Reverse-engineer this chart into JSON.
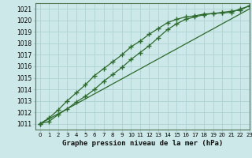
{
  "title": "Graphe pression niveau de la mer (hPa)",
  "bg_color": "#cce8e8",
  "grid_color": "#aacece",
  "line_color": "#2d6a2d",
  "xlim": [
    -0.5,
    23
  ],
  "ylim": [
    1010.5,
    1021.5
  ],
  "yticks": [
    1011,
    1012,
    1013,
    1014,
    1015,
    1016,
    1017,
    1018,
    1019,
    1020,
    1021
  ],
  "xticks": [
    0,
    1,
    2,
    3,
    4,
    5,
    6,
    7,
    8,
    9,
    10,
    11,
    12,
    13,
    14,
    15,
    16,
    17,
    18,
    19,
    20,
    21,
    22,
    23
  ],
  "line1_x": [
    0,
    1,
    2,
    3,
    4,
    5,
    6,
    7,
    8,
    9,
    10,
    11,
    12,
    13,
    14,
    15,
    16,
    17,
    18,
    19,
    20,
    21,
    22,
    23
  ],
  "line1_y": [
    1011.0,
    1011.43,
    1011.87,
    1012.3,
    1012.74,
    1013.17,
    1013.61,
    1014.04,
    1014.48,
    1014.91,
    1015.35,
    1015.78,
    1016.22,
    1016.65,
    1017.09,
    1017.52,
    1017.96,
    1018.39,
    1018.83,
    1019.26,
    1019.7,
    1020.13,
    1020.57,
    1021.0
  ],
  "line2_x": [
    0,
    1,
    2,
    3,
    4,
    5,
    6,
    7,
    8,
    9,
    10,
    11,
    12,
    13,
    14,
    15,
    16,
    17,
    18,
    19,
    20,
    21,
    22,
    23
  ],
  "line2_y": [
    1011.0,
    1011.5,
    1012.2,
    1013.0,
    1013.7,
    1014.4,
    1015.2,
    1015.8,
    1016.4,
    1017.0,
    1017.7,
    1018.2,
    1018.8,
    1019.3,
    1019.8,
    1020.1,
    1020.3,
    1020.4,
    1020.55,
    1020.6,
    1020.7,
    1020.8,
    1020.9,
    1021.3
  ],
  "line3_x": [
    0,
    1,
    2,
    3,
    4,
    5,
    6,
    7,
    8,
    9,
    10,
    11,
    12,
    13,
    14,
    15,
    16,
    17,
    18,
    19,
    20,
    21,
    22,
    23
  ],
  "line3_y": [
    1011.0,
    1011.2,
    1011.8,
    1012.3,
    1012.9,
    1013.4,
    1014.0,
    1014.7,
    1015.3,
    1015.9,
    1016.6,
    1017.2,
    1017.8,
    1018.5,
    1019.2,
    1019.7,
    1020.1,
    1020.3,
    1020.5,
    1020.6,
    1020.65,
    1020.7,
    1021.0,
    1021.25
  ]
}
